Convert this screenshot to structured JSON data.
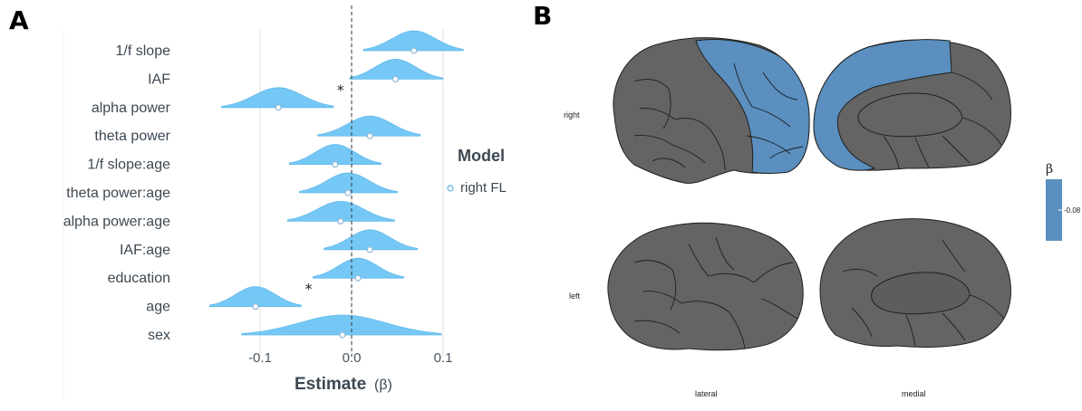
{
  "panels": {
    "a_label": "A",
    "b_label": "B"
  },
  "colors": {
    "density_fill": "#6ec6f5",
    "density_stroke": "#5ab6ea",
    "brain_gray": "#646464",
    "brain_blue": "#5a8fbf",
    "brain_outline": "#1f1f1f"
  },
  "chart_data": {
    "type": "density",
    "xlabel": "Estimate",
    "xlabel_unit": "(β)",
    "xlim": [
      -0.16,
      0.125
    ],
    "xticks": [
      -0.1,
      0.0,
      0.1
    ],
    "xtick_labels": [
      "-0.1",
      "0.0",
      "0.1"
    ],
    "reference_line": 0,
    "legend_title": "Model",
    "series": [
      {
        "name": "right FL"
      }
    ],
    "categories": [
      "1/f slope",
      "IAF",
      "alpha power",
      "theta power",
      "1/f slope:age",
      "theta power:age",
      "alpha power:age",
      "IAF:age",
      "education",
      "age",
      "sex"
    ],
    "estimates": [
      {
        "term": "1/f slope",
        "mean": 0.068,
        "lo": 0.013,
        "hi": 0.122,
        "significant": false
      },
      {
        "term": "IAF",
        "mean": 0.048,
        "lo": -0.002,
        "hi": 0.1,
        "significant": false
      },
      {
        "term": "alpha power",
        "mean": -0.08,
        "lo": -0.142,
        "hi": -0.02,
        "significant": true
      },
      {
        "term": "theta power",
        "mean": 0.02,
        "lo": -0.037,
        "hi": 0.075,
        "significant": false
      },
      {
        "term": "1/f slope:age",
        "mean": -0.018,
        "lo": -0.068,
        "hi": 0.032,
        "significant": false
      },
      {
        "term": "theta power:age",
        "mean": -0.004,
        "lo": -0.057,
        "hi": 0.05,
        "significant": false
      },
      {
        "term": "alpha power:age",
        "mean": -0.012,
        "lo": -0.07,
        "hi": 0.047,
        "significant": false
      },
      {
        "term": "IAF:age",
        "mean": 0.02,
        "lo": -0.03,
        "hi": 0.072,
        "significant": false
      },
      {
        "term": "education",
        "mean": 0.007,
        "lo": -0.042,
        "hi": 0.057,
        "significant": false
      },
      {
        "term": "age",
        "mean": -0.105,
        "lo": -0.155,
        "hi": -0.055,
        "significant": true
      },
      {
        "term": "sex",
        "mean": -0.01,
        "lo": -0.12,
        "hi": 0.098,
        "significant": false
      }
    ],
    "significance_marker": "*"
  },
  "brain": {
    "row_labels": {
      "right": "right",
      "left": "left"
    },
    "col_labels": {
      "lateral": "lateral",
      "medial": "medial"
    },
    "colorbar_title": "β",
    "colorbar_tick": "-0.08"
  }
}
